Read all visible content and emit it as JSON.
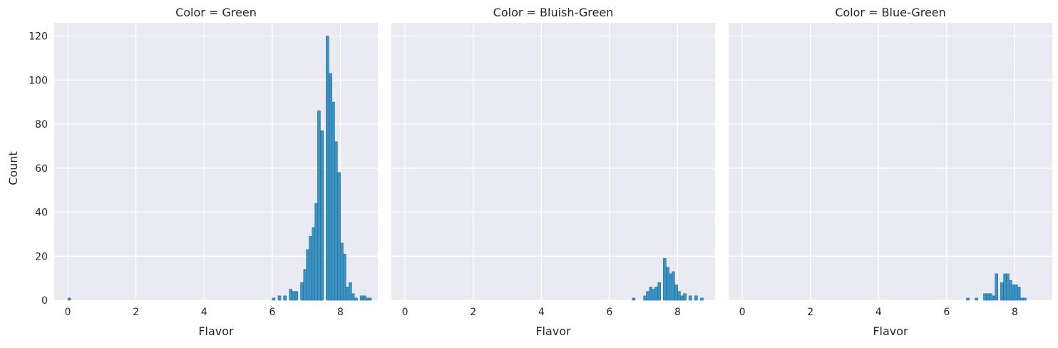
{
  "chart_data": {
    "type": "bar",
    "subtype": "faceted-histogram",
    "style": "seaborn-darkgrid",
    "bar_color": "#3a93c3",
    "background_color": "#eaeaf2",
    "grid": true,
    "xlabel": "Flavor",
    "ylabel": "Count",
    "xlim": [
      -0.4,
      9.1
    ],
    "ylim": [
      0,
      126
    ],
    "xticks": [
      0,
      2,
      4,
      6,
      8
    ],
    "yticks": [
      0,
      20,
      40,
      60,
      80,
      100,
      120
    ],
    "bin_width": 0.0834,
    "panels": [
      {
        "title": "Color = Green",
        "bins": [
          {
            "x": 0.0,
            "count": 1
          },
          {
            "x": 6.0,
            "count": 1
          },
          {
            "x": 6.17,
            "count": 2
          },
          {
            "x": 6.33,
            "count": 2
          },
          {
            "x": 6.5,
            "count": 5
          },
          {
            "x": 6.58,
            "count": 4
          },
          {
            "x": 6.67,
            "count": 4
          },
          {
            "x": 6.83,
            "count": 8
          },
          {
            "x": 6.92,
            "count": 14
          },
          {
            "x": 7.0,
            "count": 23
          },
          {
            "x": 7.08,
            "count": 29
          },
          {
            "x": 7.17,
            "count": 33
          },
          {
            "x": 7.25,
            "count": 44
          },
          {
            "x": 7.33,
            "count": 86
          },
          {
            "x": 7.42,
            "count": 77
          },
          {
            "x": 7.5,
            "count": 0
          },
          {
            "x": 7.58,
            "count": 120
          },
          {
            "x": 7.67,
            "count": 103
          },
          {
            "x": 7.75,
            "count": 90
          },
          {
            "x": 7.83,
            "count": 72
          },
          {
            "x": 7.92,
            "count": 58
          },
          {
            "x": 8.0,
            "count": 26
          },
          {
            "x": 8.08,
            "count": 21
          },
          {
            "x": 8.17,
            "count": 6
          },
          {
            "x": 8.25,
            "count": 8
          },
          {
            "x": 8.33,
            "count": 3
          },
          {
            "x": 8.42,
            "count": 1
          },
          {
            "x": 8.58,
            "count": 2
          },
          {
            "x": 8.67,
            "count": 2
          },
          {
            "x": 8.75,
            "count": 1
          },
          {
            "x": 8.83,
            "count": 1
          }
        ]
      },
      {
        "title": "Color = Bluish-Green",
        "bins": [
          {
            "x": 6.67,
            "count": 1
          },
          {
            "x": 7.0,
            "count": 2
          },
          {
            "x": 7.08,
            "count": 4
          },
          {
            "x": 7.17,
            "count": 6
          },
          {
            "x": 7.25,
            "count": 5
          },
          {
            "x": 7.33,
            "count": 6
          },
          {
            "x": 7.42,
            "count": 8
          },
          {
            "x": 7.58,
            "count": 19
          },
          {
            "x": 7.67,
            "count": 15
          },
          {
            "x": 7.75,
            "count": 12
          },
          {
            "x": 7.83,
            "count": 13
          },
          {
            "x": 7.92,
            "count": 7
          },
          {
            "x": 8.0,
            "count": 4
          },
          {
            "x": 8.08,
            "count": 2
          },
          {
            "x": 8.17,
            "count": 3
          },
          {
            "x": 8.33,
            "count": 2
          },
          {
            "x": 8.5,
            "count": 2
          },
          {
            "x": 8.67,
            "count": 1
          }
        ]
      },
      {
        "title": "Color = Blue-Green",
        "bins": [
          {
            "x": 6.58,
            "count": 1
          },
          {
            "x": 6.83,
            "count": 1
          },
          {
            "x": 7.08,
            "count": 3
          },
          {
            "x": 7.17,
            "count": 3
          },
          {
            "x": 7.25,
            "count": 3
          },
          {
            "x": 7.33,
            "count": 2
          },
          {
            "x": 7.42,
            "count": 12
          },
          {
            "x": 7.58,
            "count": 8
          },
          {
            "x": 7.67,
            "count": 12
          },
          {
            "x": 7.75,
            "count": 12
          },
          {
            "x": 7.83,
            "count": 9
          },
          {
            "x": 7.92,
            "count": 7
          },
          {
            "x": 8.0,
            "count": 7
          },
          {
            "x": 8.08,
            "count": 6
          },
          {
            "x": 8.17,
            "count": 1
          },
          {
            "x": 8.25,
            "count": 1
          }
        ]
      }
    ]
  }
}
